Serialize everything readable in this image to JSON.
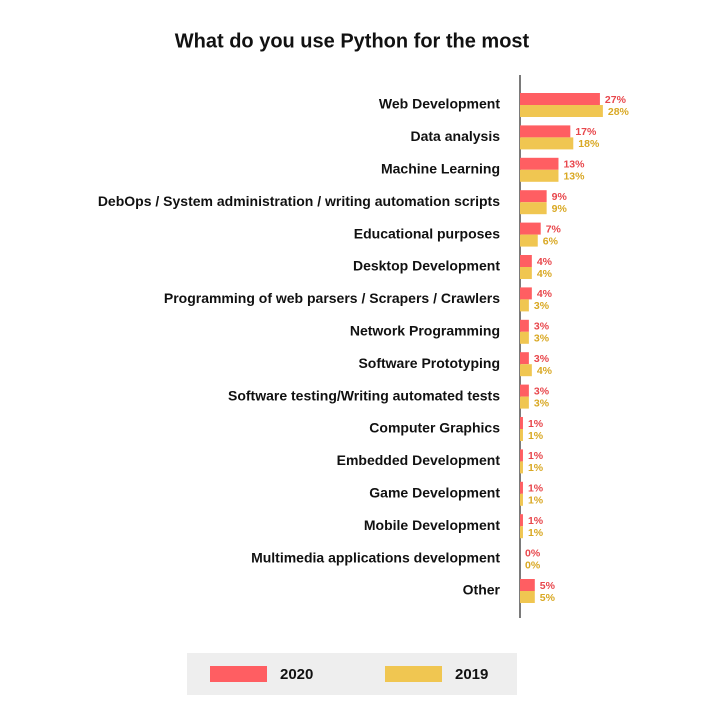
{
  "chart_data": {
    "type": "bar",
    "orientation": "horizontal",
    "title": "What do you use Python for the most",
    "categories": [
      "Web Development",
      "Data analysis",
      "Machine Learning",
      "DebOps / System administration / writing automation scripts",
      "Educational purposes",
      "Desktop Development",
      "Programming of web parsers / Scrapers / Crawlers",
      "Network Programming",
      "Software Prototyping",
      "Software testing/Writing automated tests",
      "Computer Graphics",
      "Embedded Development",
      "Game Development",
      "Mobile Development",
      "Multimedia applications development",
      "Other"
    ],
    "series": [
      {
        "name": "2020",
        "color": "#ff5e62",
        "values": [
          27,
          17,
          13,
          9,
          7,
          4,
          4,
          3,
          3,
          3,
          1,
          1,
          1,
          1,
          0,
          5
        ],
        "value_labels": [
          "27%",
          "17%",
          "13%",
          "9%",
          "7%",
          "4%",
          "4%",
          "3%",
          "3%",
          "3%",
          "1%",
          "1%",
          "1%",
          "1%",
          "0%",
          "5%"
        ]
      },
      {
        "name": "2019",
        "color": "#f0c651",
        "values": [
          28,
          18,
          13,
          9,
          6,
          4,
          3,
          3,
          4,
          3,
          1,
          1,
          1,
          1,
          0,
          5
        ],
        "value_labels": [
          "28%",
          "18%",
          "13%",
          "9%",
          "6%",
          "4%",
          "3%",
          "3%",
          "4%",
          "3%",
          "1%",
          "1%",
          "1%",
          "1%",
          "0%",
          "5%"
        ]
      }
    ],
    "legend": "bottom"
  }
}
